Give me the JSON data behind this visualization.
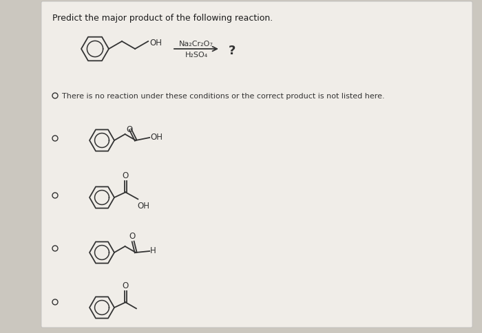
{
  "title": "Predict the major product of the following reaction.",
  "reagent_line1": "Na₂Cr₂O₇",
  "reagent_line2": "H₂SO₄",
  "question_mark": "?",
  "no_reaction_text": "There is no reaction under these conditions or the correct product is not listed here.",
  "bg_color": "#cbc7bf",
  "card_color": "#f0ede8",
  "text_color": "#1a1a1a",
  "structure_color": "#333333",
  "fig_width": 7.0,
  "fig_height": 4.85
}
